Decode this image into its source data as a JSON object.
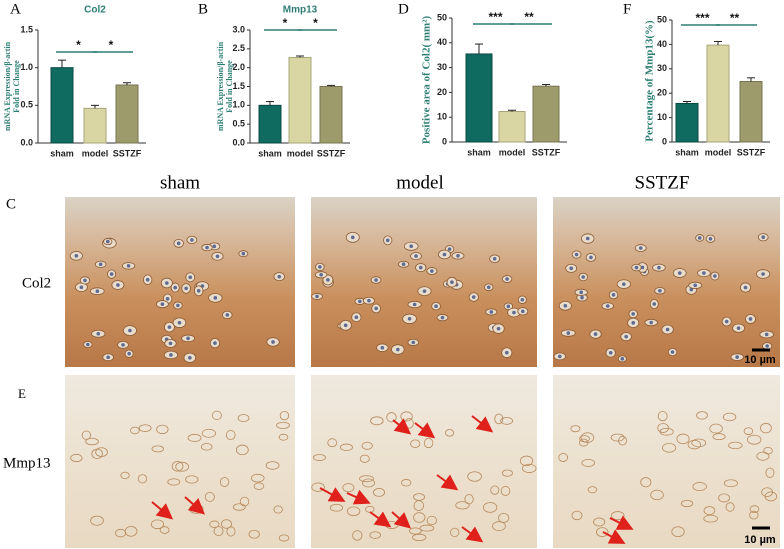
{
  "chart_data": [
    {
      "type": "bar",
      "panel": "A",
      "title": "Col2",
      "ylabel": [
        "mRNA Expression/β-actin",
        "Fold in Change"
      ],
      "categories": [
        "sham",
        "model",
        "SSTZF"
      ],
      "values": [
        1.0,
        0.46,
        0.77
      ],
      "errors": [
        0.1,
        0.04,
        0.03
      ],
      "colors": [
        "#0f6b60",
        "#d9d6a3",
        "#9d9b6c"
      ],
      "ylim": [
        0,
        1.5
      ],
      "yticks": [
        {
          "value": 0,
          "label": "0.0"
        },
        {
          "value": 0.5,
          "label": "0.5"
        },
        {
          "value": 1,
          "label": "1.0"
        },
        {
          "value": 1.5,
          "label": "1.5"
        }
      ],
      "significance": [
        "*",
        "*"
      ]
    },
    {
      "type": "bar",
      "panel": "B",
      "title": "Mmp13",
      "ylabel": [
        "mRNA Expression/β-actin",
        "Fold in Change"
      ],
      "categories": [
        "sham",
        "model",
        "SSTZF"
      ],
      "values": [
        1.0,
        2.27,
        1.5
      ],
      "errors": [
        0.1,
        0.04,
        0.03
      ],
      "colors": [
        "#0f6b60",
        "#d9d6a3",
        "#9d9b6c"
      ],
      "ylim": [
        0,
        3
      ],
      "yticks": [
        {
          "value": 0,
          "label": "0.0"
        },
        {
          "value": 0.5,
          "label": "0.5"
        },
        {
          "value": 1,
          "label": "1.0"
        },
        {
          "value": 1.5,
          "label": "1.5"
        },
        {
          "value": 2,
          "label": "2.0"
        },
        {
          "value": 2.5,
          "label": "2.5"
        },
        {
          "value": 3,
          "label": "3.0"
        }
      ],
      "significance": [
        "*",
        "*"
      ]
    },
    {
      "type": "bar",
      "panel": "D",
      "ylabel": [
        "Positive area of Col2( mm²)"
      ],
      "categories": [
        "sham",
        "model",
        "SSTZF"
      ],
      "values": [
        35.5,
        12.3,
        22.5
      ],
      "errors": [
        4,
        0.5,
        0.7
      ],
      "colors": [
        "#0f6b60",
        "#d9d6a3",
        "#9d9b6c"
      ],
      "ylim": [
        0,
        50
      ],
      "yticks": [
        0,
        10,
        20,
        30,
        40,
        50
      ],
      "significance": [
        "***",
        "**"
      ]
    },
    {
      "type": "bar",
      "panel": "F",
      "ylabel": [
        "Percentage of Mmp13(%)"
      ],
      "categories": [
        "sham",
        "model",
        "SSTZF"
      ],
      "values": [
        15.8,
        39.7,
        24.8
      ],
      "errors": [
        0.8,
        1.5,
        1.5
      ],
      "colors": [
        "#0f6b60",
        "#d9d6a3",
        "#9d9b6c"
      ],
      "ylim": [
        0,
        50
      ],
      "yticks": [
        0,
        10,
        20,
        30,
        40,
        50
      ],
      "significance": [
        "***",
        "**"
      ]
    }
  ],
  "figure": {
    "columns": [
      "sham",
      "model",
      "SSTZF"
    ],
    "rows": [
      {
        "panel": "C",
        "label": "Col2",
        "scale_bar": "10 µm"
      },
      {
        "panel": "E",
        "label": "Mmp13",
        "scale_bar": "10 µm"
      }
    ]
  }
}
